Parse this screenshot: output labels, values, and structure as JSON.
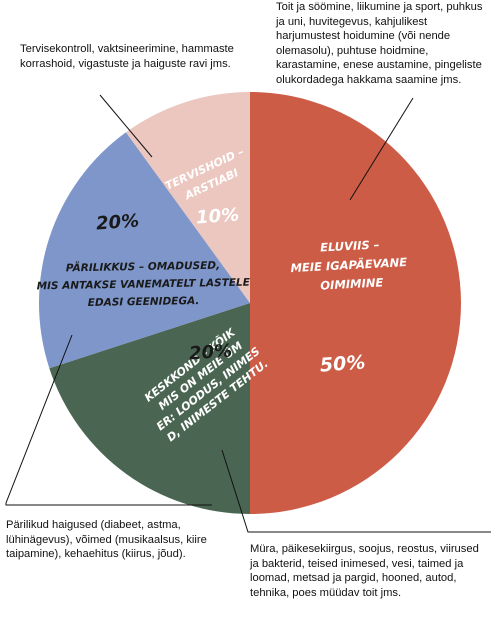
{
  "chart_data": {
    "type": "pie",
    "slices": [
      {
        "label": "ELUVIIS – MEIE IGAPÄEVANE TOIMIMINE",
        "value": 50,
        "value_label": "50%",
        "color": "#cd5c46",
        "note": "Toit ja söömine, liikumine ja sport, puhkus ja uni, huvitegevus, kahjulikest harjumustest hoidumine (või nende olemasolu), puhtuse hoidmine, karastamine, enese austamine, pingeliste olukordadega hakkama saamine jms."
      },
      {
        "label": "KESKKOND – KÕIK, MIS ON MEIE ÜMBER: LOODUS, INIMESED, INIMESTE TEHTU.",
        "value": 20,
        "value_label": "20%",
        "color": "#4a6652",
        "note": "Müra, päikesekiirgus, soojus, reostus, viirused ja bakterid, teised inimesed, vesi, taimed ja loomad, metsad ja pargid, hooned, autod, tehnika, poes müüdav toit jms."
      },
      {
        "label": "PÄRILIKKUS – OMADUSED, MIS ANTAKSE VANEMATELT LASTELE EDASI GEENIDEGA.",
        "value": 20,
        "value_label": "20%",
        "color": "#7e96ca",
        "note": "Pärilikud haigused (diabeet, astma, lühinägevus), võimed (musikaalsus, kiire taipamine), kehaehitus (kiirus, jõud)."
      },
      {
        "label": "TERVISHOID – ARSTIABI",
        "value": 10,
        "value_label": "10%",
        "color": "#ebc7c0",
        "note": "Tervisekontroll, vaktsineerimine, hammaste korrashoid, vigastuste ja haiguste ravi jms."
      }
    ]
  }
}
